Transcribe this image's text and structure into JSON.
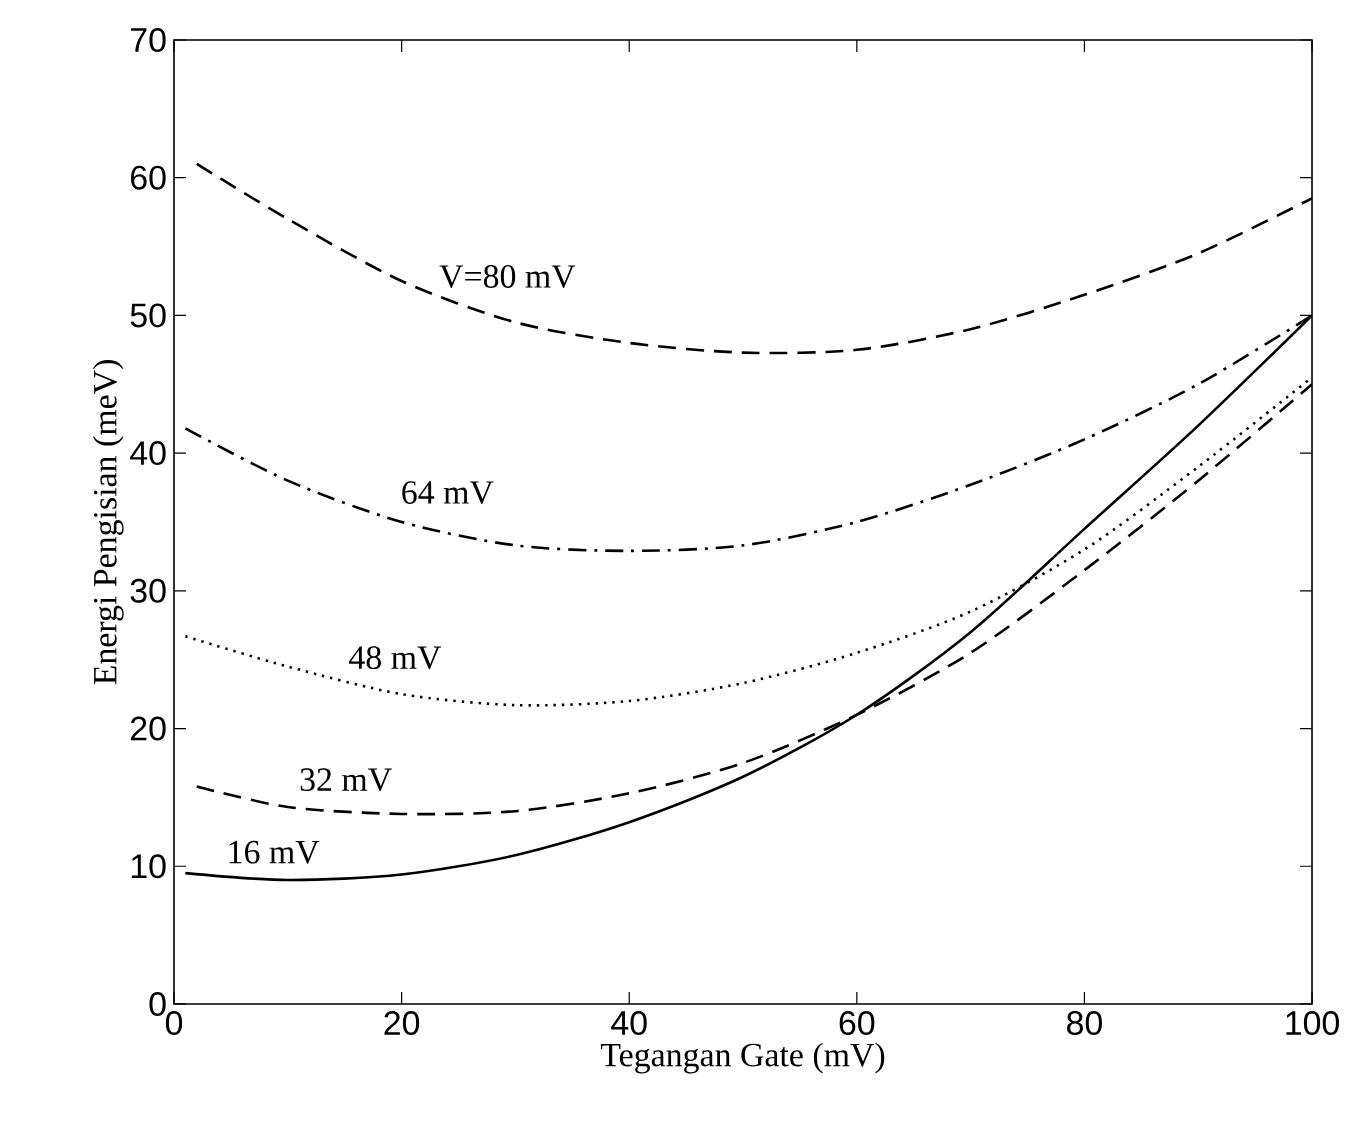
{
  "chart_data": {
    "type": "line",
    "xlabel": "Tegangan Gate (mV)",
    "ylabel": "Energi Pengisian (meV)",
    "xlim": [
      0,
      100
    ],
    "ylim": [
      0,
      70
    ],
    "xticks": [
      0,
      20,
      40,
      60,
      80,
      100
    ],
    "yticks": [
      0,
      10,
      20,
      30,
      40,
      50,
      60,
      70
    ],
    "series": [
      {
        "name": "16 mV",
        "color": "#000000",
        "line_style": "solid",
        "x": [
          1,
          10,
          20,
          30,
          40,
          50,
          60,
          70,
          80,
          90,
          100
        ],
        "values": [
          9.5,
          9,
          9.4,
          10.8,
          13.2,
          16.5,
          21,
          27,
          34.5,
          42,
          50
        ]
      },
      {
        "name": "32 mV",
        "color": "#000000",
        "line_style": "dashed",
        "x": [
          2,
          10,
          20,
          30,
          40,
          50,
          60,
          70,
          80,
          90,
          100
        ],
        "values": [
          15.8,
          14.3,
          13.8,
          14,
          15.3,
          17.5,
          21,
          25.5,
          31.5,
          38,
          45
        ]
      },
      {
        "name": "48 mV",
        "color": "#000000",
        "line_style": "dotted",
        "x": [
          1,
          10,
          20,
          30,
          40,
          50,
          60,
          70,
          80,
          90,
          100
        ],
        "values": [
          26.7,
          24.5,
          22.5,
          21.7,
          22,
          23.3,
          25.5,
          28.5,
          33,
          39,
          45.5
        ]
      },
      {
        "name": "64 mV",
        "color": "#000000",
        "line_style": "dashdot",
        "x": [
          1,
          10,
          20,
          30,
          40,
          50,
          60,
          70,
          80,
          90,
          100
        ],
        "values": [
          41.8,
          38,
          35,
          33.3,
          32.9,
          33.3,
          35,
          37.7,
          41,
          45,
          50
        ]
      },
      {
        "name": "V=80 mV",
        "color": "#000000",
        "line_style": "dashed",
        "x": [
          2,
          10,
          20,
          30,
          40,
          50,
          60,
          70,
          80,
          90,
          100
        ],
        "values": [
          61,
          57,
          52.5,
          49.5,
          48,
          47.3,
          47.5,
          49,
          51.5,
          54.5,
          58.5
        ]
      }
    ]
  }
}
